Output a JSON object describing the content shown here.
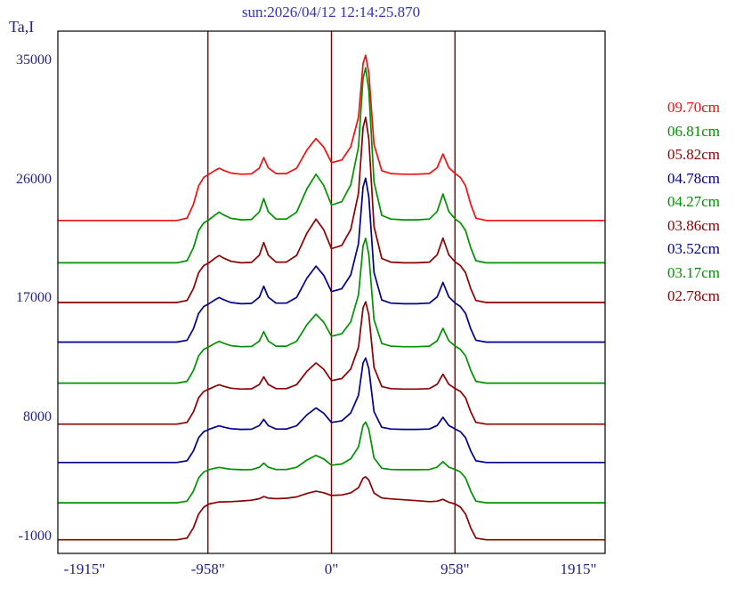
{
  "window": {
    "background": "#ffffff"
  },
  "chart_data": {
    "type": "line",
    "title": "sun:2026/04/12 12:14:25.870",
    "ylabel": "Ta,I",
    "xlabel": "",
    "xlim": [
      -2122,
      2122
    ],
    "ylim": [
      -2279,
      37221
    ],
    "grid": false,
    "legend_position": "right",
    "x_ticks": [
      {
        "value": -1915,
        "label": "-1915\""
      },
      {
        "value": -958,
        "label": "-958\""
      },
      {
        "value": 0,
        "label": "0\""
      },
      {
        "value": 958,
        "label": "958\""
      },
      {
        "value": 1915,
        "label": "1915\""
      }
    ],
    "y_ticks": [
      {
        "value": 35000,
        "label": "35000"
      },
      {
        "value": 26000,
        "label": "26000"
      },
      {
        "value": 17000,
        "label": "17000"
      },
      {
        "value": 8000,
        "label": "8000"
      },
      {
        "value": -1000,
        "label": "-1000"
      }
    ],
    "vlines": [
      -958,
      0,
      958
    ],
    "colors": {
      "title": "#3333bb",
      "tick_label": "#22228a",
      "frame": "#000000",
      "vline": "#7a0000"
    },
    "x": [
      -2122,
      -1500,
      -1200,
      -1120,
      -1070,
      -1030,
      -990,
      -950,
      -900,
      -870,
      -840,
      -780,
      -700,
      -620,
      -560,
      -525,
      -490,
      -430,
      -350,
      -270,
      -190,
      -120,
      -60,
      0,
      80,
      150,
      210,
      245,
      265,
      290,
      330,
      390,
      460,
      560,
      660,
      760,
      820,
      865,
      910,
      960,
      1000,
      1040,
      1080,
      1120,
      1200,
      1500,
      2122
    ],
    "series": [
      {
        "name": "09.70cm",
        "color": "#ee1111",
        "y": [
          22900,
          22900,
          22900,
          23075,
          24125,
          25525,
          26155,
          26400,
          26706,
          26850,
          26706,
          26490,
          26400,
          26430,
          26868,
          27660,
          26877,
          26445,
          26445,
          26859,
          28245,
          29100,
          28443,
          27273,
          27480,
          28470,
          30720,
          34770,
          35400,
          34050,
          28650,
          26670,
          26445,
          26400,
          26400,
          26445,
          26895,
          27930,
          26895,
          26445,
          26155,
          25525,
          24125,
          23075,
          22900,
          22900,
          22900
        ]
      },
      {
        "name": "06.81cm",
        "color": "#009100",
        "y": [
          19700,
          19700,
          19700,
          19863,
          20838,
          22138,
          22723,
          22950,
          23341,
          23525,
          23341,
          23065,
          22950,
          22985,
          23548,
          24560,
          23560,
          23008,
          23008,
          23537,
          25308,
          26400,
          25561,
          24066,
          24330,
          25595,
          28470,
          33645,
          34450,
          32725,
          25825,
          23295,
          23008,
          22950,
          22950,
          23008,
          23583,
          24905,
          23583,
          23008,
          22723,
          22138,
          20838,
          19863,
          19700,
          19700,
          19700
        ]
      },
      {
        "name": "05.82cm",
        "color": "#8b0000",
        "y": [
          16700,
          16700,
          16700,
          16850,
          17750,
          18950,
          19490,
          19700,
          20074,
          20250,
          20074,
          19810,
          19700,
          19733,
          20272,
          21240,
          20283,
          19755,
          19755,
          20261,
          21955,
          23000,
          22197,
          20767,
          21020,
          22230,
          24980,
          29930,
          30700,
          29050,
          22450,
          20030,
          19755,
          19700,
          19700,
          19755,
          20305,
          21570,
          20305,
          19755,
          19490,
          18950,
          17750,
          16850,
          16700,
          16700,
          16700
        ]
      },
      {
        "name": "04.78cm",
        "color": "#00008b",
        "y": [
          13700,
          13700,
          13700,
          13845,
          14715,
          15875,
          16397,
          16600,
          16923,
          17075,
          16923,
          16695,
          16600,
          16630,
          17094,
          17930,
          17104,
          16648,
          16648,
          17085,
          18548,
          19450,
          18757,
          17522,
          17740,
          18785,
          21160,
          25435,
          26100,
          24675,
          18975,
          16885,
          16648,
          16600,
          16600,
          16648,
          17123,
          18215,
          17123,
          16648,
          16397,
          15875,
          14715,
          13845,
          13700,
          13700,
          13700
        ]
      },
      {
        "name": "04.27cm",
        "color": "#009100",
        "y": [
          10600,
          10600,
          10600,
          10738,
          11563,
          12663,
          13158,
          13350,
          13629,
          13760,
          13629,
          13432,
          13350,
          13375,
          13776,
          14498,
          13785,
          13391,
          13391,
          13768,
          15031,
          15810,
          15211,
          14145,
          14334,
          15236,
          17286,
          20976,
          21550,
          20320,
          15400,
          13596,
          13391,
          13350,
          13350,
          13391,
          13801,
          14744,
          13801,
          13391,
          13158,
          12663,
          11563,
          10738,
          10600,
          10600,
          10600
        ]
      },
      {
        "name": "03.86cm",
        "color": "#8b0000",
        "y": [
          7500,
          7500,
          7500,
          7633,
          8428,
          9488,
          9965,
          10150,
          10374,
          10480,
          10374,
          10216,
          10150,
          10170,
          10493,
          11074,
          10500,
          10183,
          10183,
          10487,
          11503,
          12130,
          11648,
          10790,
          10942,
          11668,
          13318,
          16288,
          16750,
          15760,
          11800,
          10348,
          10183,
          10150,
          10150,
          10183,
          10513,
          11272,
          10513,
          10183,
          9965,
          9488,
          8428,
          7633,
          7500,
          7500,
          7500
        ]
      },
      {
        "name": "03.52cm",
        "color": "#00008b",
        "y": [
          4600,
          4600,
          4600,
          4725,
          5475,
          6475,
          6925,
          7100,
          7284,
          7370,
          7284,
          7154,
          7100,
          7116,
          7381,
          7856,
          7386,
          7127,
          7127,
          7375,
          8207,
          8720,
          8326,
          7624,
          7748,
          8342,
          9692,
          12122,
          12500,
          11690,
          8450,
          7262,
          7127,
          7100,
          7100,
          7127,
          7397,
          8018,
          7397,
          7127,
          6925,
          6475,
          5475,
          4725,
          4600,
          4600,
          4600
        ]
      },
      {
        "name": "03.17cm",
        "color": "#009100",
        "y": [
          1550,
          1550,
          1550,
          1675,
          2425,
          3425,
          3875,
          4050,
          4172,
          4230,
          4172,
          4086,
          4050,
          4061,
          4237,
          4554,
          4241,
          4068,
          4068,
          4234,
          4788,
          5130,
          4867,
          4399,
          4482,
          4878,
          5778,
          7398,
          7650,
          7110,
          4950,
          4158,
          4068,
          4050,
          4050,
          4068,
          4248,
          4662,
          4248,
          4068,
          3875,
          3425,
          2425,
          1675,
          1550,
          1550,
          1550
        ]
      },
      {
        "name": "02.78cm",
        "color": "#8b0000",
        "y": [
          -1250,
          -1250,
          -1250,
          -1120,
          -340,
          700,
          1220,
          1459,
          1563,
          1618,
          1620,
          1635,
          1683,
          1746,
          1862,
          2024,
          1904,
          1857,
          1891,
          1992,
          2258,
          2422,
          2311,
          2105,
          2139,
          2306,
          2694,
          3405,
          3512,
          3264,
          2291,
          1915,
          1843,
          1780,
          1713,
          1636,
          1673,
          1815,
          1588,
          1458,
          1220,
          700,
          -340,
          -1120,
          -1250,
          -1250,
          -1250
        ]
      }
    ]
  }
}
